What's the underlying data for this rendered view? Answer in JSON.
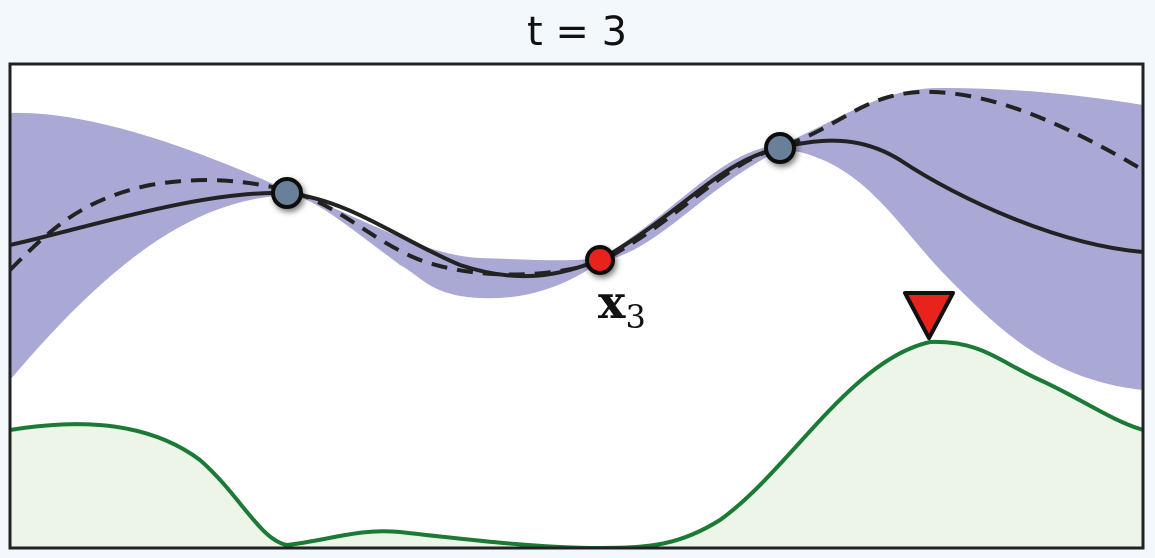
{
  "title": "t = 3",
  "point_label": {
    "base": "x",
    "subscript": "3"
  }
}
